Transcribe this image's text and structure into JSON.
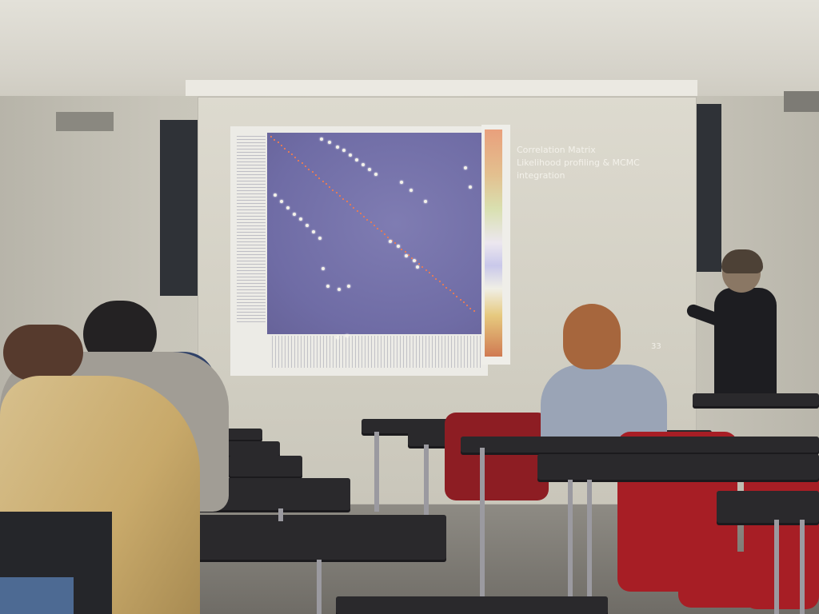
{
  "slide": {
    "heading_line1": "Correlation Matrix",
    "heading_line2": "Likelihood profiling & MCMC",
    "heading_line3": "integration",
    "page_number": "33"
  },
  "colors": {
    "matrix_fill": "#7f7cb2",
    "correlation_spot": "#f4f2ea",
    "diagonal": "#e07a5a",
    "chair_red": "#a71e25",
    "desk_black": "#2a292c"
  }
}
